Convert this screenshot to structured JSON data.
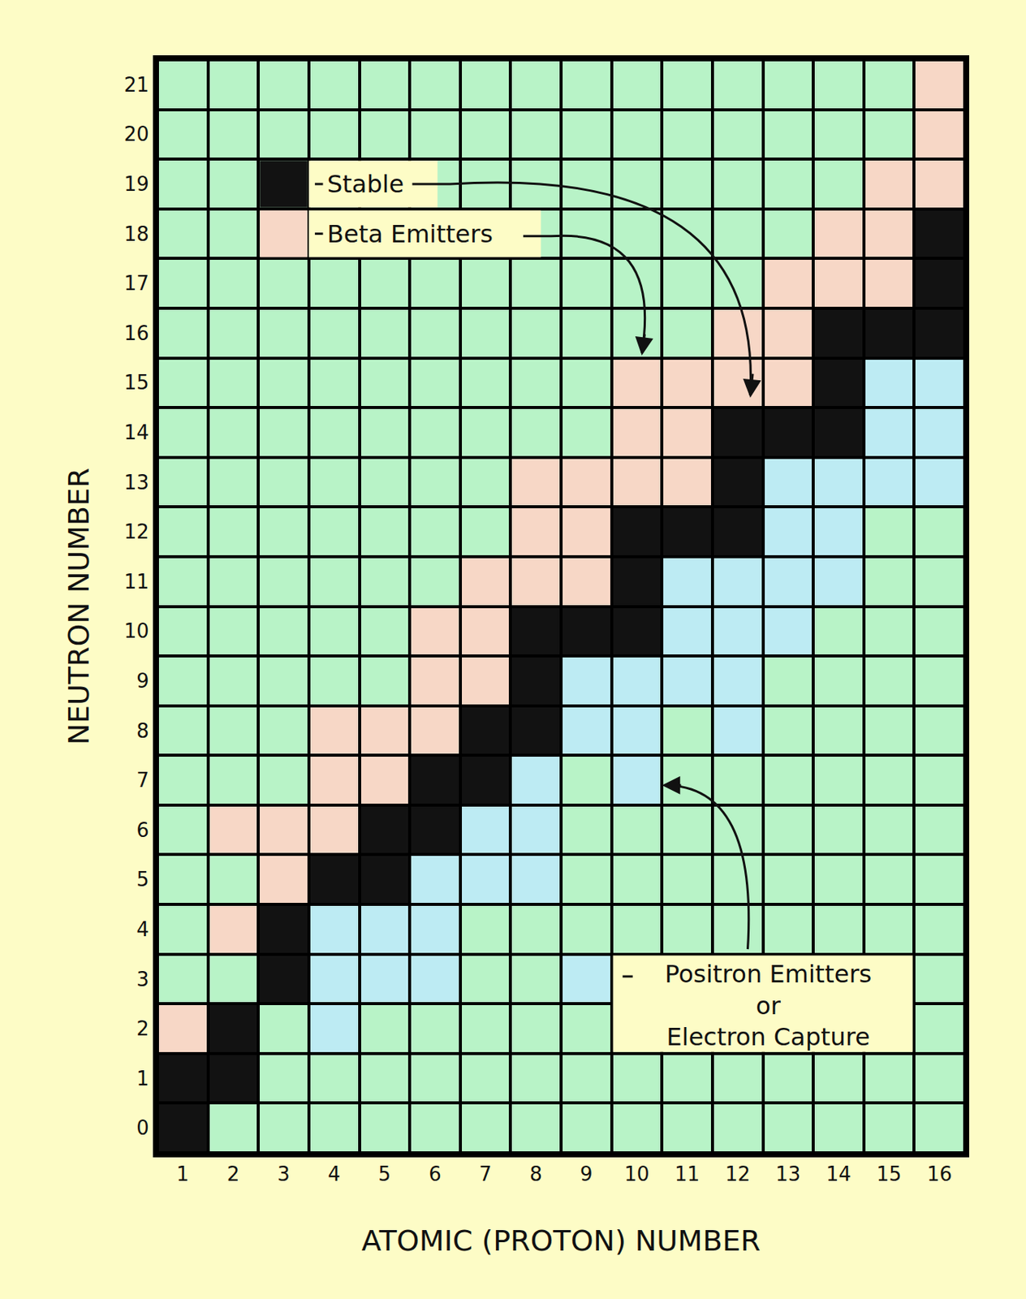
{
  "chart_data": {
    "type": "heatmap",
    "x_label": "ATOMIC (PROTON) NUMBER",
    "y_label": "NEUTRON NUMBER",
    "xlim": [
      0.5,
      16.5
    ],
    "ylim": [
      -0.5,
      21.5
    ],
    "xticks": [
      1,
      2,
      3,
      4,
      5,
      6,
      7,
      8,
      9,
      10,
      11,
      12,
      13,
      14,
      15,
      16
    ],
    "yticks": [
      0,
      1,
      2,
      3,
      4,
      5,
      6,
      7,
      8,
      9,
      10,
      11,
      12,
      13,
      14,
      15,
      16,
      17,
      18,
      19,
      20,
      21
    ],
    "color": "#b8f3c7",
    "series": [
      {
        "name": "Stable",
        "color": "#121212",
        "cells": [
          [
            1,
            0
          ],
          [
            1,
            1
          ],
          [
            2,
            1
          ],
          [
            2,
            2
          ],
          [
            3,
            3
          ],
          [
            3,
            4
          ],
          [
            4,
            5
          ],
          [
            5,
            5
          ],
          [
            5,
            6
          ],
          [
            6,
            6
          ],
          [
            6,
            7
          ],
          [
            7,
            7
          ],
          [
            7,
            8
          ],
          [
            8,
            8
          ],
          [
            8,
            9
          ],
          [
            8,
            10
          ],
          [
            9,
            10
          ],
          [
            10,
            10
          ],
          [
            10,
            11
          ],
          [
            10,
            12
          ],
          [
            11,
            12
          ],
          [
            12,
            12
          ],
          [
            12,
            13
          ],
          [
            12,
            14
          ],
          [
            13,
            14
          ],
          [
            14,
            14
          ],
          [
            14,
            15
          ],
          [
            14,
            16
          ],
          [
            15,
            16
          ],
          [
            16,
            16
          ],
          [
            16,
            17
          ],
          [
            16,
            18
          ]
        ]
      },
      {
        "name": "Beta Emitters",
        "color": "#f7d7c6",
        "cells": [
          [
            1,
            2
          ],
          [
            2,
            4
          ],
          [
            2,
            6
          ],
          [
            3,
            5
          ],
          [
            3,
            6
          ],
          [
            4,
            6
          ],
          [
            4,
            7
          ],
          [
            4,
            8
          ],
          [
            5,
            7
          ],
          [
            5,
            8
          ],
          [
            6,
            8
          ],
          [
            6,
            9
          ],
          [
            6,
            10
          ],
          [
            7,
            9
          ],
          [
            7,
            10
          ],
          [
            7,
            11
          ],
          [
            8,
            11
          ],
          [
            8,
            12
          ],
          [
            8,
            13
          ],
          [
            9,
            11
          ],
          [
            9,
            12
          ],
          [
            9,
            13
          ],
          [
            10,
            13
          ],
          [
            10,
            14
          ],
          [
            10,
            15
          ],
          [
            11,
            13
          ],
          [
            11,
            14
          ],
          [
            11,
            15
          ],
          [
            12,
            15
          ],
          [
            12,
            16
          ],
          [
            13,
            15
          ],
          [
            13,
            16
          ],
          [
            13,
            17
          ],
          [
            14,
            17
          ],
          [
            14,
            18
          ],
          [
            15,
            17
          ],
          [
            15,
            18
          ],
          [
            15,
            19
          ],
          [
            16,
            19
          ],
          [
            16,
            20
          ],
          [
            16,
            21
          ]
        ]
      },
      {
        "name": "Positron Emitters\nor\nElectron Capture",
        "color": "#bdebf3",
        "cells": [
          [
            4,
            2
          ],
          [
            4,
            3
          ],
          [
            4,
            4
          ],
          [
            5,
            3
          ],
          [
            5,
            4
          ],
          [
            6,
            3
          ],
          [
            6,
            4
          ],
          [
            6,
            5
          ],
          [
            7,
            5
          ],
          [
            7,
            6
          ],
          [
            8,
            5
          ],
          [
            8,
            6
          ],
          [
            8,
            7
          ],
          [
            9,
            3
          ],
          [
            9,
            8
          ],
          [
            9,
            9
          ],
          [
            10,
            7
          ],
          [
            10,
            8
          ],
          [
            10,
            9
          ],
          [
            11,
            9
          ],
          [
            11,
            10
          ],
          [
            11,
            11
          ],
          [
            12,
            8
          ],
          [
            12,
            9
          ],
          [
            12,
            10
          ],
          [
            12,
            11
          ],
          [
            13,
            10
          ],
          [
            13,
            11
          ],
          [
            13,
            12
          ],
          [
            13,
            13
          ],
          [
            14,
            11
          ],
          [
            14,
            12
          ],
          [
            14,
            13
          ],
          [
            15,
            13
          ],
          [
            15,
            14
          ],
          [
            15,
            15
          ],
          [
            16,
            13
          ],
          [
            16,
            14
          ],
          [
            16,
            15
          ]
        ]
      }
    ]
  }
}
